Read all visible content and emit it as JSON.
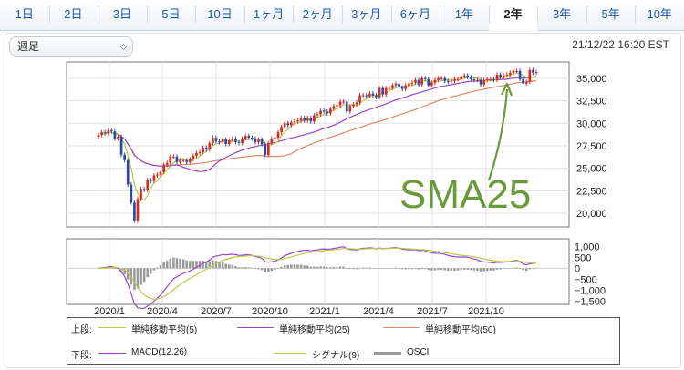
{
  "tabs": [
    {
      "label": "1日"
    },
    {
      "label": "2日"
    },
    {
      "label": "3日"
    },
    {
      "label": "5日"
    },
    {
      "label": "10日"
    },
    {
      "label": "1ヶ月"
    },
    {
      "label": "2ヶ月"
    },
    {
      "label": "3ヶ月"
    },
    {
      "label": "6ヶ月"
    },
    {
      "label": "1年"
    },
    {
      "label": "2年"
    },
    {
      "label": "3年"
    },
    {
      "label": "5年"
    },
    {
      "label": "10年"
    }
  ],
  "active_tab": "2年",
  "period_select": {
    "value": "週足"
  },
  "timestamp": "21/12/22 16:20 EST",
  "annotation": {
    "text": "SMA25",
    "color": "#6b9a3c"
  },
  "colors": {
    "up": "#d42b22",
    "down": "#2b4aa8",
    "sma5": "#b5cb4a",
    "sma25": "#9b45c4",
    "sma50": "#e08866",
    "macd": "#9b45c4",
    "signal": "#b5cb4a",
    "osci": "#999999"
  },
  "chart_data": [
    {
      "type": "candlestick",
      "title": "",
      "x_tick_labels": [
        "2020/1",
        "2020/4",
        "2020/7",
        "2020/10",
        "2021/1",
        "2021/4",
        "2021/7",
        "2021/10"
      ],
      "y_tick_labels": [
        "35,000",
        "32,500",
        "30,000",
        "27,500",
        "25,000",
        "22,500",
        "20,000"
      ],
      "ylim": [
        18500,
        36800
      ],
      "close": [
        28700,
        29000,
        28900,
        29200,
        29100,
        28300,
        28500,
        26500,
        25900,
        23200,
        21200,
        19200,
        21600,
        22700,
        22600,
        23700,
        23600,
        24200,
        24300,
        24600,
        25400,
        25600,
        26300,
        26300,
        25700,
        25900,
        25900,
        25700,
        26000,
        26400,
        26700,
        26800,
        27300,
        27100,
        27800,
        28400,
        28000,
        27900,
        28200,
        27700,
        28100,
        28300,
        27900,
        27800,
        28300,
        28600,
        28400,
        28300,
        27900,
        28200,
        27700,
        26500,
        27800,
        28300,
        28400,
        29000,
        29600,
        30000,
        29800,
        30100,
        30200,
        30300,
        30600,
        30300,
        30600,
        30200,
        30900,
        31000,
        31400,
        31300,
        31100,
        31600,
        31900,
        32000,
        32400,
        32400,
        31300,
        31900,
        32100,
        32300,
        33100,
        33100,
        33000,
        33300,
        33100,
        32900,
        33900,
        33200,
        33900,
        33900,
        34200,
        34400,
        34000,
        33800,
        34200,
        34400,
        34500,
        34800,
        34300,
        35000,
        34900,
        34200,
        34500,
        34800,
        35000,
        35000,
        34700,
        34600,
        34700,
        34900,
        34900,
        35200,
        35300,
        35100,
        34900,
        34800,
        34800,
        34300,
        34800,
        34900,
        34900,
        34800,
        35400,
        35100,
        35300,
        35400,
        35600,
        35800,
        35800,
        34900,
        34400,
        34600,
        35900,
        35600,
        35700
      ],
      "series": [
        {
          "name": "単純移動平均(5)"
        },
        {
          "name": "単純移動平均(25)"
        },
        {
          "name": "単純移動平均(50)"
        }
      ]
    },
    {
      "type": "line",
      "title": "",
      "x_tick_labels": [
        "2020/1",
        "2020/4",
        "2020/7",
        "2020/10",
        "2021/1",
        "2021/4",
        "2021/7",
        "2021/10"
      ],
      "y_tick_labels": [
        "1,000",
        "500",
        "0",
        "−500",
        "−1,000",
        "−1,500"
      ],
      "ylim": [
        -1650,
        1350
      ],
      "series": [
        {
          "name": "MACD(12,26)"
        },
        {
          "name": "シグナル(9)"
        },
        {
          "name": "OSCI"
        }
      ]
    }
  ],
  "legend": {
    "upper_label": "上段:",
    "lower_label": "下段:",
    "items_upper": [
      "単純移動平均(5)",
      "単純移動平均(25)",
      "単純移動平均(50)"
    ],
    "items_lower": [
      "MACD(12,26)",
      "シグナル(9)",
      "OSCI"
    ]
  }
}
